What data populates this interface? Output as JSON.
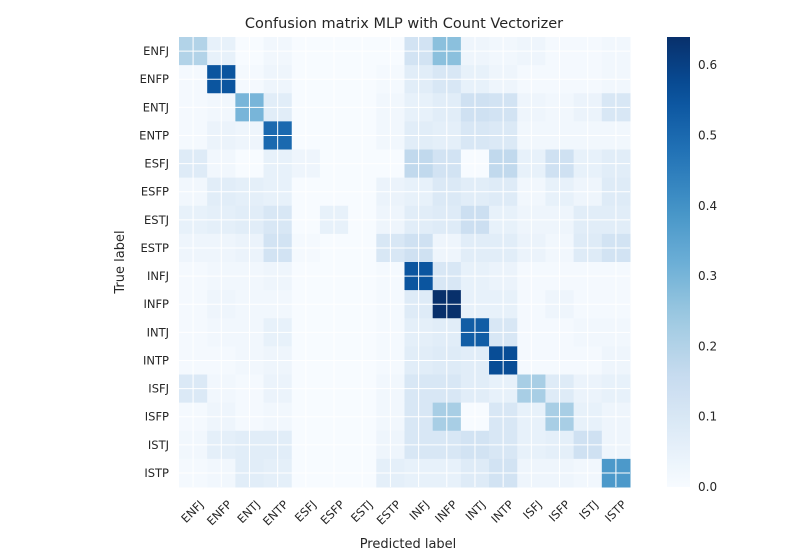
{
  "chart_data": {
    "type": "heatmap",
    "title": "Confusion matrix MLP with Count Vectorizer",
    "xlabel": "Predicted label",
    "ylabel": "True label",
    "labels": [
      "ENFJ",
      "ENFP",
      "ENTJ",
      "ENTP",
      "ESFJ",
      "ESFP",
      "ESTJ",
      "ESTP",
      "INFJ",
      "INFP",
      "INTJ",
      "INTP",
      "ISFJ",
      "ISFP",
      "ISTJ",
      "ISTP"
    ],
    "matrix": [
      [
        0.2,
        0.05,
        0.0,
        0.02,
        0.0,
        0.0,
        0.0,
        0.0,
        0.12,
        0.27,
        0.03,
        0.02,
        0.03,
        0.01,
        0.01,
        0.02
      ],
      [
        0.01,
        0.55,
        0.01,
        0.03,
        0.0,
        0.0,
        0.0,
        0.01,
        0.07,
        0.1,
        0.05,
        0.03,
        0.01,
        0.01,
        0.01,
        0.02
      ],
      [
        0.01,
        0.02,
        0.3,
        0.07,
        0.0,
        0.0,
        0.0,
        0.02,
        0.05,
        0.07,
        0.13,
        0.12,
        0.03,
        0.02,
        0.04,
        0.1
      ],
      [
        0.01,
        0.04,
        0.03,
        0.5,
        0.0,
        0.0,
        0.0,
        0.02,
        0.07,
        0.06,
        0.1,
        0.09,
        0.02,
        0.02,
        0.02,
        0.02
      ],
      [
        0.08,
        0.02,
        0.0,
        0.05,
        0.03,
        0.0,
        0.0,
        0.0,
        0.17,
        0.12,
        0.0,
        0.17,
        0.05,
        0.13,
        0.05,
        0.07
      ],
      [
        0.02,
        0.07,
        0.06,
        0.05,
        0.0,
        0.0,
        0.0,
        0.04,
        0.05,
        0.09,
        0.07,
        0.08,
        0.02,
        0.05,
        0.03,
        0.08
      ],
      [
        0.05,
        0.06,
        0.07,
        0.1,
        0.0,
        0.05,
        0.0,
        0.03,
        0.07,
        0.08,
        0.14,
        0.05,
        0.03,
        0.03,
        0.07,
        0.07
      ],
      [
        0.03,
        0.03,
        0.04,
        0.12,
        0.01,
        0.0,
        0.0,
        0.1,
        0.13,
        0.03,
        0.07,
        0.07,
        0.04,
        0.02,
        0.08,
        0.12
      ],
      [
        0.01,
        0.02,
        0.02,
        0.03,
        0.0,
        0.0,
        0.0,
        0.01,
        0.55,
        0.1,
        0.05,
        0.04,
        0.01,
        0.01,
        0.01,
        0.01
      ],
      [
        0.01,
        0.03,
        0.02,
        0.02,
        0.0,
        0.0,
        0.0,
        0.01,
        0.08,
        0.64,
        0.05,
        0.05,
        0.01,
        0.03,
        0.01,
        0.01
      ],
      [
        0.01,
        0.02,
        0.02,
        0.05,
        0.0,
        0.0,
        0.0,
        0.01,
        0.06,
        0.07,
        0.53,
        0.1,
        0.01,
        0.01,
        0.02,
        0.02
      ],
      [
        0.01,
        0.01,
        0.02,
        0.03,
        0.0,
        0.0,
        0.0,
        0.01,
        0.07,
        0.08,
        0.07,
        0.57,
        0.01,
        0.01,
        0.01,
        0.03
      ],
      [
        0.09,
        0.02,
        0.01,
        0.04,
        0.0,
        0.0,
        0.0,
        0.02,
        0.1,
        0.1,
        0.07,
        0.05,
        0.22,
        0.08,
        0.04,
        0.05
      ],
      [
        0.01,
        0.03,
        0.01,
        0.02,
        0.0,
        0.0,
        0.0,
        0.02,
        0.1,
        0.22,
        0.0,
        0.1,
        0.05,
        0.22,
        0.05,
        0.03
      ],
      [
        0.02,
        0.06,
        0.07,
        0.07,
        0.0,
        0.0,
        0.0,
        0.03,
        0.1,
        0.1,
        0.12,
        0.1,
        0.05,
        0.06,
        0.13,
        0.03
      ],
      [
        0.01,
        0.02,
        0.07,
        0.06,
        0.0,
        0.0,
        0.0,
        0.06,
        0.05,
        0.05,
        0.08,
        0.12,
        0.03,
        0.03,
        0.02,
        0.38
      ]
    ],
    "colormap": "Blues",
    "colorbar": {
      "min": 0.0,
      "max": 0.64,
      "ticks": [
        "0.0",
        "0.1",
        "0.2",
        "0.3",
        "0.4",
        "0.5",
        "0.6"
      ]
    },
    "grid": true
  },
  "colors": {
    "low": "#f7fbff",
    "high": "#08306b",
    "grid": "#ffffff",
    "text": "#262626"
  }
}
